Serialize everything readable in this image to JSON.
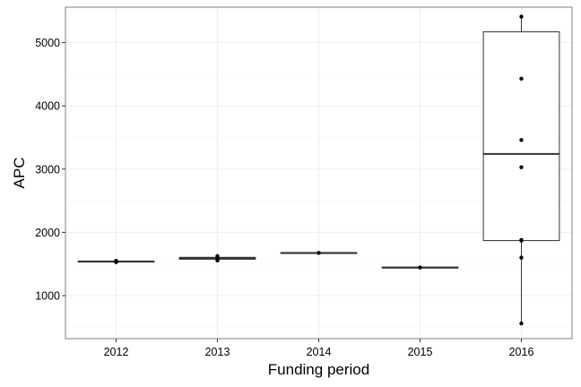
{
  "chart_data": {
    "type": "box",
    "title": "",
    "xlabel": "Funding period",
    "ylabel": "APC",
    "categories": [
      "2012",
      "2013",
      "2014",
      "2015",
      "2016"
    ],
    "ylim": [
      320,
      5560
    ],
    "yticks": [
      1000,
      2000,
      3000,
      4000,
      5000
    ],
    "grid": true,
    "boxes": [
      {
        "category": "2012",
        "min": 1530,
        "q1": 1535,
        "median": 1540,
        "q3": 1545,
        "max": 1550
      },
      {
        "category": "2013",
        "min": 1555,
        "q1": 1575,
        "median": 1590,
        "q3": 1605,
        "max": 1625
      },
      {
        "category": "2014",
        "min": 1670,
        "q1": 1670,
        "median": 1675,
        "q3": 1680,
        "max": 1680
      },
      {
        "category": "2015",
        "min": 1440,
        "q1": 1440,
        "median": 1445,
        "q3": 1450,
        "max": 1450
      },
      {
        "category": "2016",
        "min": 560,
        "q1": 1870,
        "median": 3240,
        "q3": 5170,
        "max": 5410
      }
    ],
    "points": [
      {
        "category": "2012",
        "y": 1530
      },
      {
        "category": "2012",
        "y": 1550
      },
      {
        "category": "2013",
        "y": 1555
      },
      {
        "category": "2013",
        "y": 1580
      },
      {
        "category": "2013",
        "y": 1625
      },
      {
        "category": "2014",
        "y": 1675
      },
      {
        "category": "2015",
        "y": 1445
      },
      {
        "category": "2016",
        "y": 560
      },
      {
        "category": "2016",
        "y": 1600
      },
      {
        "category": "2016",
        "y": 1870
      },
      {
        "category": "2016",
        "y": 1880
      },
      {
        "category": "2016",
        "y": 3030
      },
      {
        "category": "2016",
        "y": 3460
      },
      {
        "category": "2016",
        "y": 4430
      },
      {
        "category": "2016",
        "y": 5410
      }
    ],
    "colors": {
      "background": "#ffffff",
      "panel_border": "#7f7f7f",
      "grid_major": "#ebebeb",
      "grid_minor": "#f5f5f5",
      "box_line": "#333333",
      "point": "#000000"
    }
  }
}
